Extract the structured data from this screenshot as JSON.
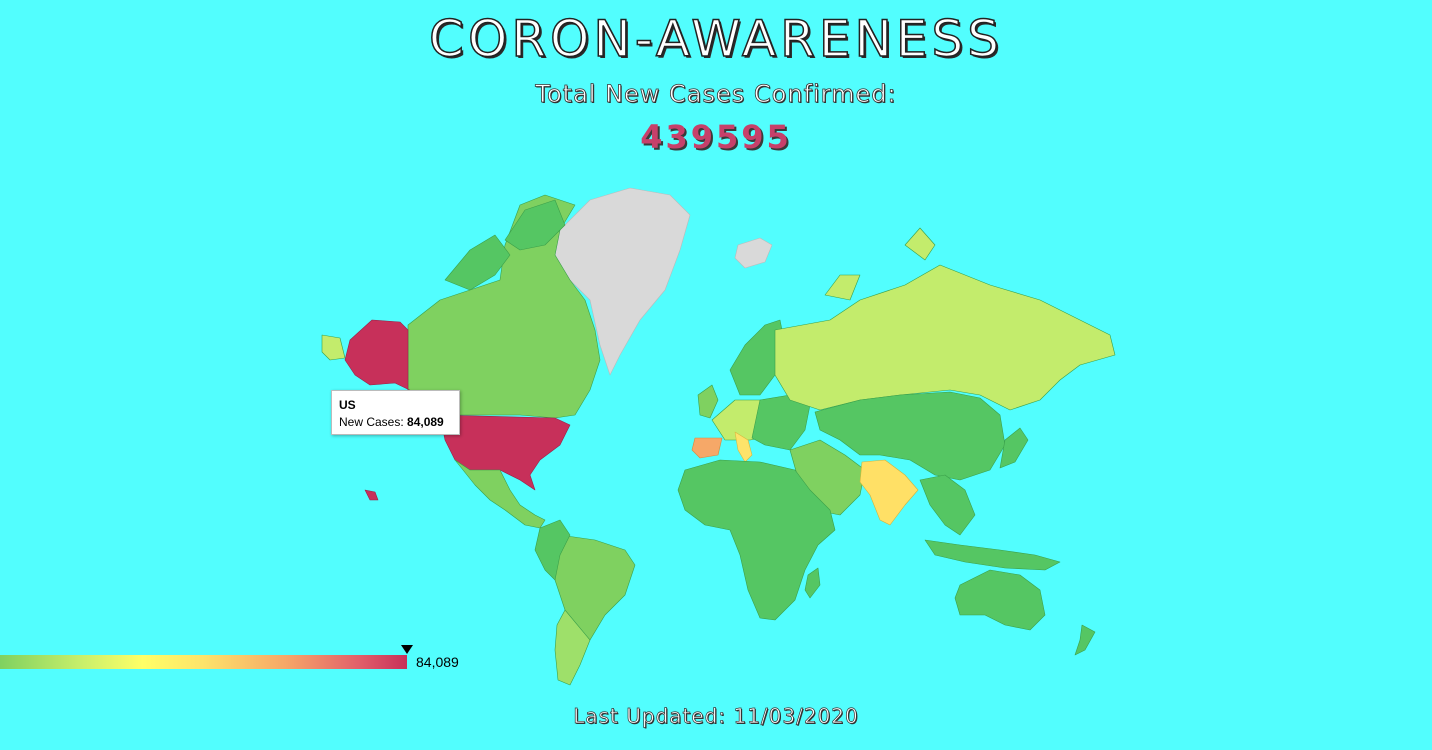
{
  "header": {
    "title": "CORON-AWARENESS",
    "subtitle": "Total New Cases Confirmed:",
    "total": "439595"
  },
  "map": {
    "tooltip": {
      "country": "US",
      "metric_label": "New Cases:",
      "metric_value": "84,089"
    },
    "legend": {
      "max_label": "84,089",
      "colors": [
        "#7fd160",
        "#c8ef6a",
        "#ffff66",
        "#f6a868",
        "#c7305a"
      ]
    },
    "colors": {
      "ocean": "#52fefe",
      "high": "#c7305a",
      "mid": "#ffe066",
      "low": "#55c663",
      "lower": "#c3ec6c",
      "nodata": "#d9d9d9"
    }
  },
  "footer": {
    "last_updated": "Last Updated: 11/03/2020"
  }
}
